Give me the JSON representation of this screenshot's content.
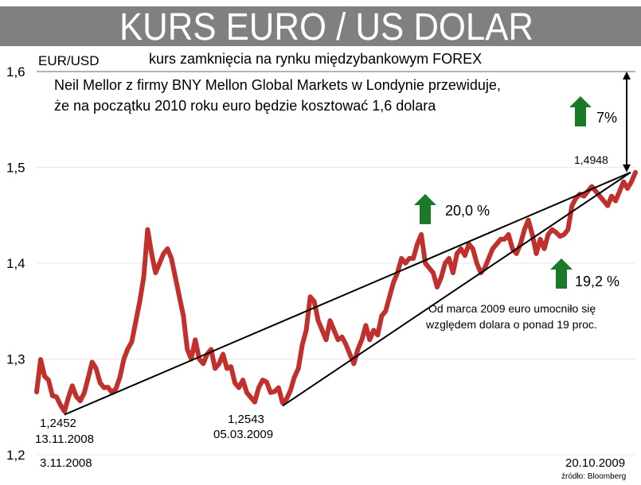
{
  "title": "KURS EURO / US DOLAR",
  "subtitle": "kurs zamknięcia na rynku międzybankowym FOREX",
  "source": "źródło: Bloomberg",
  "colors": {
    "series": "#c0302c",
    "banner": "#808080",
    "arrow_up": "#1a7a2a",
    "grid": "#e8e8e8"
  },
  "chart_data": {
    "type": "line",
    "title": "KURS EURO / US DOLAR",
    "subtitle": "kurs zamknięcia na rynku międzybankowym FOREX",
    "ylabel": "EUR/USD",
    "xlabel": "",
    "ylim": [
      1.2,
      1.6
    ],
    "yticks": [
      1.2,
      1.3,
      1.4,
      1.5,
      1.6
    ],
    "ytick_labels": [
      "1,2",
      "1,3",
      "1,4",
      "1,5",
      "1,6"
    ],
    "x_start_label": "3.11.2008",
    "x_end_label": "20.10.2009",
    "grid": true,
    "series": [
      {
        "name": "EUR/USD",
        "values": [
          1.2656,
          1.2995,
          1.282,
          1.278,
          1.2617,
          1.2605,
          1.252,
          1.2452,
          1.2595,
          1.272,
          1.2608,
          1.2563,
          1.2646,
          1.28,
          1.2968,
          1.29,
          1.275,
          1.27,
          1.2705,
          1.265,
          1.269,
          1.281,
          1.3,
          1.3105,
          1.318,
          1.339,
          1.36,
          1.3855,
          1.435,
          1.41,
          1.39,
          1.4,
          1.41,
          1.415,
          1.405,
          1.385,
          1.365,
          1.345,
          1.31,
          1.3,
          1.32,
          1.3,
          1.295,
          1.305,
          1.31,
          1.29,
          1.295,
          1.305,
          1.29,
          1.292,
          1.275,
          1.27,
          1.278,
          1.265,
          1.26,
          1.255,
          1.27,
          1.278,
          1.276,
          1.265,
          1.266,
          1.27,
          1.2543,
          1.258,
          1.267,
          1.281,
          1.29,
          1.315,
          1.33,
          1.365,
          1.36,
          1.34,
          1.33,
          1.32,
          1.34,
          1.33,
          1.32,
          1.323,
          1.315,
          1.305,
          1.295,
          1.31,
          1.32,
          1.335,
          1.32,
          1.33,
          1.325,
          1.345,
          1.35,
          1.365,
          1.38,
          1.39,
          1.405,
          1.4,
          1.405,
          1.405,
          1.42,
          1.43,
          1.4,
          1.395,
          1.39,
          1.375,
          1.385,
          1.4,
          1.405,
          1.39,
          1.41,
          1.415,
          1.408,
          1.42,
          1.415,
          1.4,
          1.39,
          1.395,
          1.405,
          1.415,
          1.42,
          1.425,
          1.425,
          1.43,
          1.415,
          1.41,
          1.42,
          1.435,
          1.445,
          1.43,
          1.41,
          1.425,
          1.415,
          1.43,
          1.435,
          1.432,
          1.428,
          1.43,
          1.435,
          1.46,
          1.468,
          1.472,
          1.47,
          1.475,
          1.48,
          1.475,
          1.47,
          1.465,
          1.46,
          1.47,
          1.465,
          1.475,
          1.485,
          1.478,
          1.485,
          1.4948
        ]
      }
    ],
    "trendlines": [
      {
        "from_label": "1,2452 13.11.2008",
        "from_value": 1.2452,
        "to_value": 1.4948,
        "change_label": "20,0 %"
      },
      {
        "from_label": "1,2543 05.03.2009",
        "from_value": 1.2543,
        "to_value": 1.4948,
        "change_label": "19,2 %"
      }
    ],
    "forecast": {
      "from_value": 1.4948,
      "to_value": 1.6,
      "change_label": "7%"
    }
  },
  "annotations": {
    "forecast_note_line1": "Neil Mellor z firmy BNY Mellon Global Markets w Londynie przewiduje,",
    "forecast_note_line2": "że na początku 2010 roku euro będzie kosztować 1,6 dolara",
    "pct_forecast": "7%",
    "pct_low1": "20,0 %",
    "pct_low2": "19,2 %",
    "last_value": "1,4948",
    "low1_value": "1,2452",
    "low1_date": "13.11.2008",
    "low2_value": "1,2543",
    "low2_date": "05.03.2009",
    "march_note_line1": "Od marca 2009 euro umocniło się",
    "march_note_line2": "względem dolara o ponad 19 proc."
  }
}
